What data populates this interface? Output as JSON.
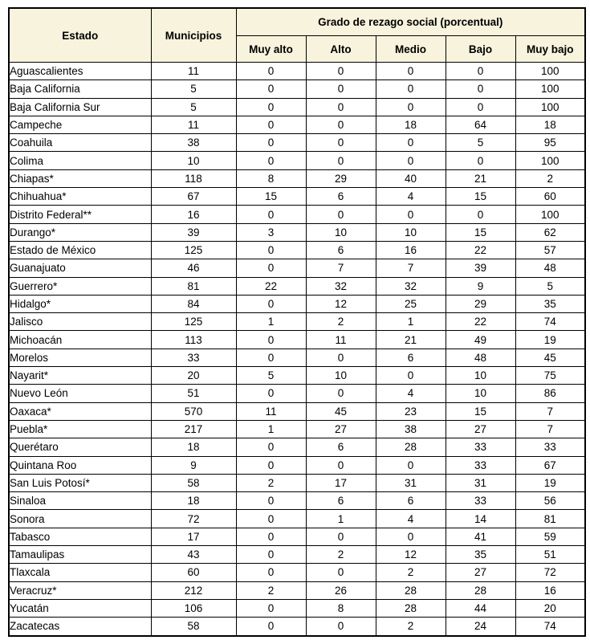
{
  "chart_data": {
    "type": "table",
    "title": "Grado de rezago social (porcentual)",
    "columns": [
      "Estado",
      "Municipios",
      "Muy alto",
      "Alto",
      "Medio",
      "Bajo",
      "Muy bajo"
    ],
    "header": {
      "col_estado": "Estado",
      "col_municipios": "Municipios",
      "group_header": "Grado de rezago social (porcentual)",
      "subcolumns": [
        "Muy alto",
        "Alto",
        "Medio",
        "Bajo",
        "Muy bajo"
      ]
    },
    "rows": [
      {
        "estado": "Aguascalientes",
        "municipios": "11",
        "values": [
          "0",
          "0",
          "0",
          "0",
          "100"
        ]
      },
      {
        "estado": "Baja California",
        "municipios": "5",
        "values": [
          "0",
          "0",
          "0",
          "0",
          "100"
        ]
      },
      {
        "estado": "Baja California Sur",
        "municipios": "5",
        "values": [
          "0",
          "0",
          "0",
          "0",
          "100"
        ]
      },
      {
        "estado": "Campeche",
        "municipios": "11",
        "values": [
          "0",
          "0",
          "18",
          "64",
          "18"
        ]
      },
      {
        "estado": "Coahuila",
        "municipios": "38",
        "values": [
          "0",
          "0",
          "0",
          "5",
          "95"
        ]
      },
      {
        "estado": "Colima",
        "municipios": "10",
        "values": [
          "0",
          "0",
          "0",
          "0",
          "100"
        ]
      },
      {
        "estado": "Chiapas*",
        "municipios": "118",
        "values": [
          "8",
          "29",
          "40",
          "21",
          "2"
        ]
      },
      {
        "estado": "Chihuahua*",
        "municipios": "67",
        "values": [
          "15",
          "6",
          "4",
          "15",
          "60"
        ]
      },
      {
        "estado": "Distrito Federal**",
        "municipios": "16",
        "values": [
          "0",
          "0",
          "0",
          "0",
          "100"
        ]
      },
      {
        "estado": "Durango*",
        "municipios": "39",
        "values": [
          "3",
          "10",
          "10",
          "15",
          "62"
        ]
      },
      {
        "estado": "Estado de México",
        "municipios": "125",
        "values": [
          "0",
          "6",
          "16",
          "22",
          "57"
        ]
      },
      {
        "estado": "Guanajuato",
        "municipios": "46",
        "values": [
          "0",
          "7",
          "7",
          "39",
          "48"
        ]
      },
      {
        "estado": "Guerrero*",
        "municipios": "81",
        "values": [
          "22",
          "32",
          "32",
          "9",
          "5"
        ]
      },
      {
        "estado": "Hidalgo*",
        "municipios": "84",
        "values": [
          "0",
          "12",
          "25",
          "29",
          "35"
        ]
      },
      {
        "estado": "Jalisco",
        "municipios": "125",
        "values": [
          "1",
          "2",
          "1",
          "22",
          "74"
        ]
      },
      {
        "estado": "Michoacán",
        "municipios": "113",
        "values": [
          "0",
          "11",
          "21",
          "49",
          "19"
        ]
      },
      {
        "estado": "Morelos",
        "municipios": "33",
        "values": [
          "0",
          "0",
          "6",
          "48",
          "45"
        ]
      },
      {
        "estado": "Nayarit*",
        "municipios": "20",
        "values": [
          "5",
          "10",
          "0",
          "10",
          "75"
        ]
      },
      {
        "estado": "Nuevo León",
        "municipios": "51",
        "values": [
          "0",
          "0",
          "4",
          "10",
          "86"
        ]
      },
      {
        "estado": "Oaxaca*",
        "municipios": "570",
        "values": [
          "11",
          "45",
          "23",
          "15",
          "7"
        ]
      },
      {
        "estado": "Puebla*",
        "municipios": "217",
        "values": [
          "1",
          "27",
          "38",
          "27",
          "7"
        ]
      },
      {
        "estado": "Querétaro",
        "municipios": "18",
        "values": [
          "0",
          "6",
          "28",
          "33",
          "33"
        ]
      },
      {
        "estado": "Quintana Roo",
        "municipios": "9",
        "values": [
          "0",
          "0",
          "0",
          "33",
          "67"
        ]
      },
      {
        "estado": "San Luis Potosí*",
        "municipios": "58",
        "values": [
          "2",
          "17",
          "31",
          "31",
          "19"
        ]
      },
      {
        "estado": "Sinaloa",
        "municipios": "18",
        "values": [
          "0",
          "6",
          "6",
          "33",
          "56"
        ]
      },
      {
        "estado": "Sonora",
        "municipios": "72",
        "values": [
          "0",
          "1",
          "4",
          "14",
          "81"
        ]
      },
      {
        "estado": "Tabasco",
        "municipios": "17",
        "values": [
          "0",
          "0",
          "0",
          "41",
          "59"
        ]
      },
      {
        "estado": "Tamaulipas",
        "municipios": "43",
        "values": [
          "0",
          "2",
          "12",
          "35",
          "51"
        ]
      },
      {
        "estado": "Tlaxcala",
        "municipios": "60",
        "values": [
          "0",
          "0",
          "2",
          "27",
          "72"
        ]
      },
      {
        "estado": "Veracruz*",
        "municipios": "212",
        "values": [
          "2",
          "26",
          "28",
          "28",
          "16"
        ]
      },
      {
        "estado": "Yucatán",
        "municipios": "106",
        "values": [
          "0",
          "8",
          "28",
          "44",
          "20"
        ]
      },
      {
        "estado": "Zacatecas",
        "municipios": "58",
        "values": [
          "0",
          "0",
          "2",
          "24",
          "74"
        ]
      }
    ]
  },
  "colors": {
    "header_bg": "#F7F3DC",
    "border": "#000000",
    "text": "#000000",
    "body_bg": "#FFFFFF"
  }
}
